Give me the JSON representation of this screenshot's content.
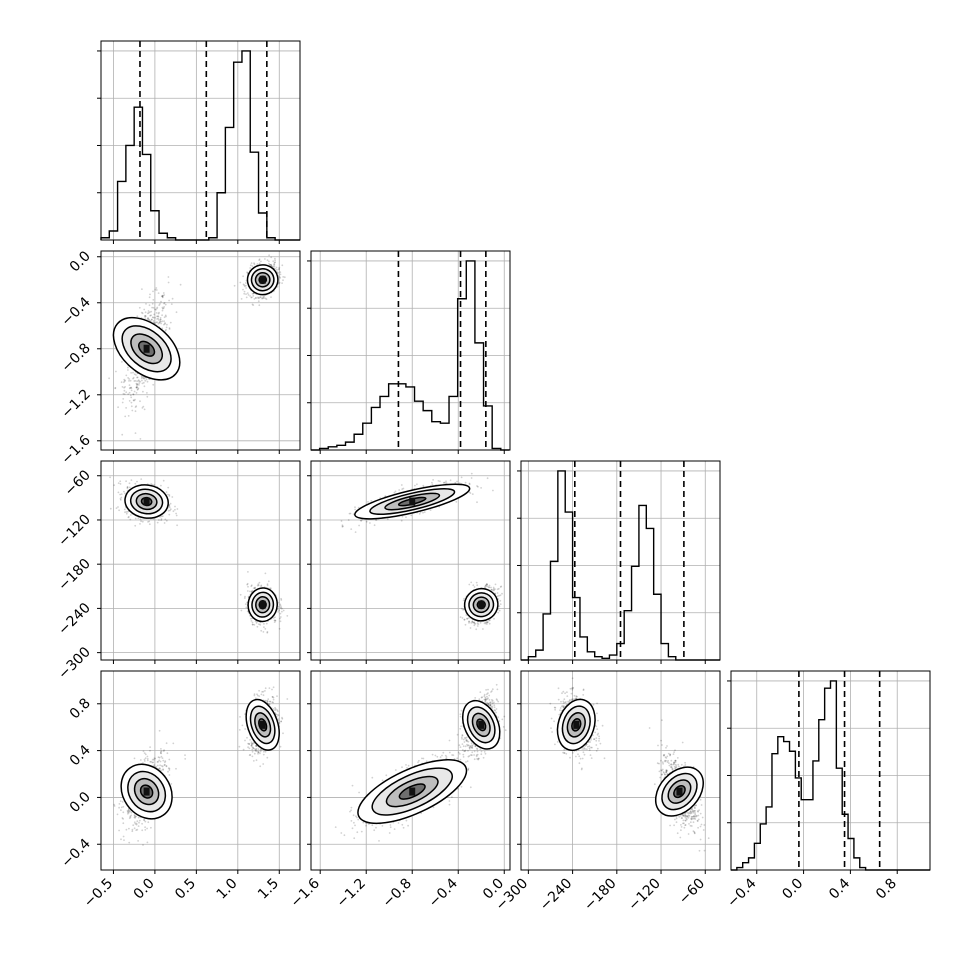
{
  "chart_data": {
    "type": "corner",
    "parameters": 4,
    "grid": true,
    "x_ticks": [
      [
        "−0.5",
        "0.0",
        "0.5",
        "1.0",
        "1.5"
      ],
      [
        "−1.6",
        "−1.2",
        "−0.8",
        "−0.4",
        "0.0"
      ],
      [
        "−300",
        "−240",
        "−180",
        "−120",
        "−60"
      ],
      [
        "−0.4",
        "0.0",
        "0.4",
        "0.8"
      ]
    ],
    "y_ticks": {
      "1": [
        "0.0",
        "−0.4",
        "−0.8",
        "−1.2",
        "−1.6"
      ],
      "2": [
        "−60",
        "−120",
        "−180",
        "−240",
        "−300"
      ],
      "3": [
        "0.8",
        "0.4",
        "0.0",
        "−0.4"
      ]
    },
    "ranges": [
      [
        -0.65,
        1.75
      ],
      [
        -1.68,
        0.05
      ],
      [
        -310,
        -40
      ],
      [
        -0.62,
        1.08
      ]
    ],
    "x_tick_values": [
      [
        -0.5,
        0.0,
        0.5,
        1.0,
        1.5
      ],
      [
        -1.6,
        -1.2,
        -0.8,
        -0.4,
        0.0
      ],
      [
        -300,
        -240,
        -180,
        -120,
        -60
      ],
      [
        -0.4,
        0.0,
        0.4,
        0.8
      ]
    ],
    "quantile_lines": [
      [
        -0.18,
        0.62,
        1.35
      ],
      [
        -0.92,
        -0.38,
        -0.16
      ],
      [
        -237,
        -175,
        -89
      ],
      [
        -0.04,
        0.35,
        0.65
      ]
    ],
    "histograms": [
      {
        "edges_start": -0.65,
        "bin_width": 0.1,
        "counts": [
          1,
          4,
          26,
          42,
          59,
          38,
          13,
          3,
          1,
          0,
          0,
          0,
          0,
          1,
          21,
          50,
          79,
          84,
          39,
          12,
          1,
          0,
          0,
          0
        ]
      },
      {
        "edges_start": -1.68,
        "bin_width": 0.075,
        "counts": [
          0,
          1,
          2,
          3,
          5,
          10,
          17,
          27,
          34,
          42,
          42,
          40,
          31,
          25,
          18,
          17,
          34,
          96,
          120,
          68,
          28,
          1,
          0
        ]
      },
      {
        "edges_start": -310,
        "bin_width": 10,
        "counts": [
          0,
          2,
          6,
          28,
          60,
          115,
          90,
          38,
          14,
          5,
          2,
          1,
          3,
          10,
          30,
          57,
          94,
          80,
          40,
          10,
          2,
          0,
          0,
          0,
          0,
          0,
          0
        ]
      },
      {
        "edges_start": -0.62,
        "bin_width": 0.05,
        "counts": [
          0,
          1,
          3,
          5,
          11,
          19,
          26,
          48,
          55,
          53,
          49,
          38,
          29,
          29,
          45,
          62,
          75,
          78,
          42,
          23,
          13,
          5,
          1,
          0,
          0,
          0,
          0,
          0,
          0,
          0,
          0,
          0,
          0,
          0
        ]
      }
    ],
    "modes": [
      {
        "mean": [
          -0.1,
          -0.8,
          -95,
          0.05
        ],
        "sd": [
          0.13,
          0.22,
          12,
          0.15
        ]
      },
      {
        "mean": [
          1.3,
          -0.2,
          -235,
          0.62
        ],
        "sd": [
          0.09,
          0.07,
          12,
          0.12
        ]
      }
    ]
  }
}
